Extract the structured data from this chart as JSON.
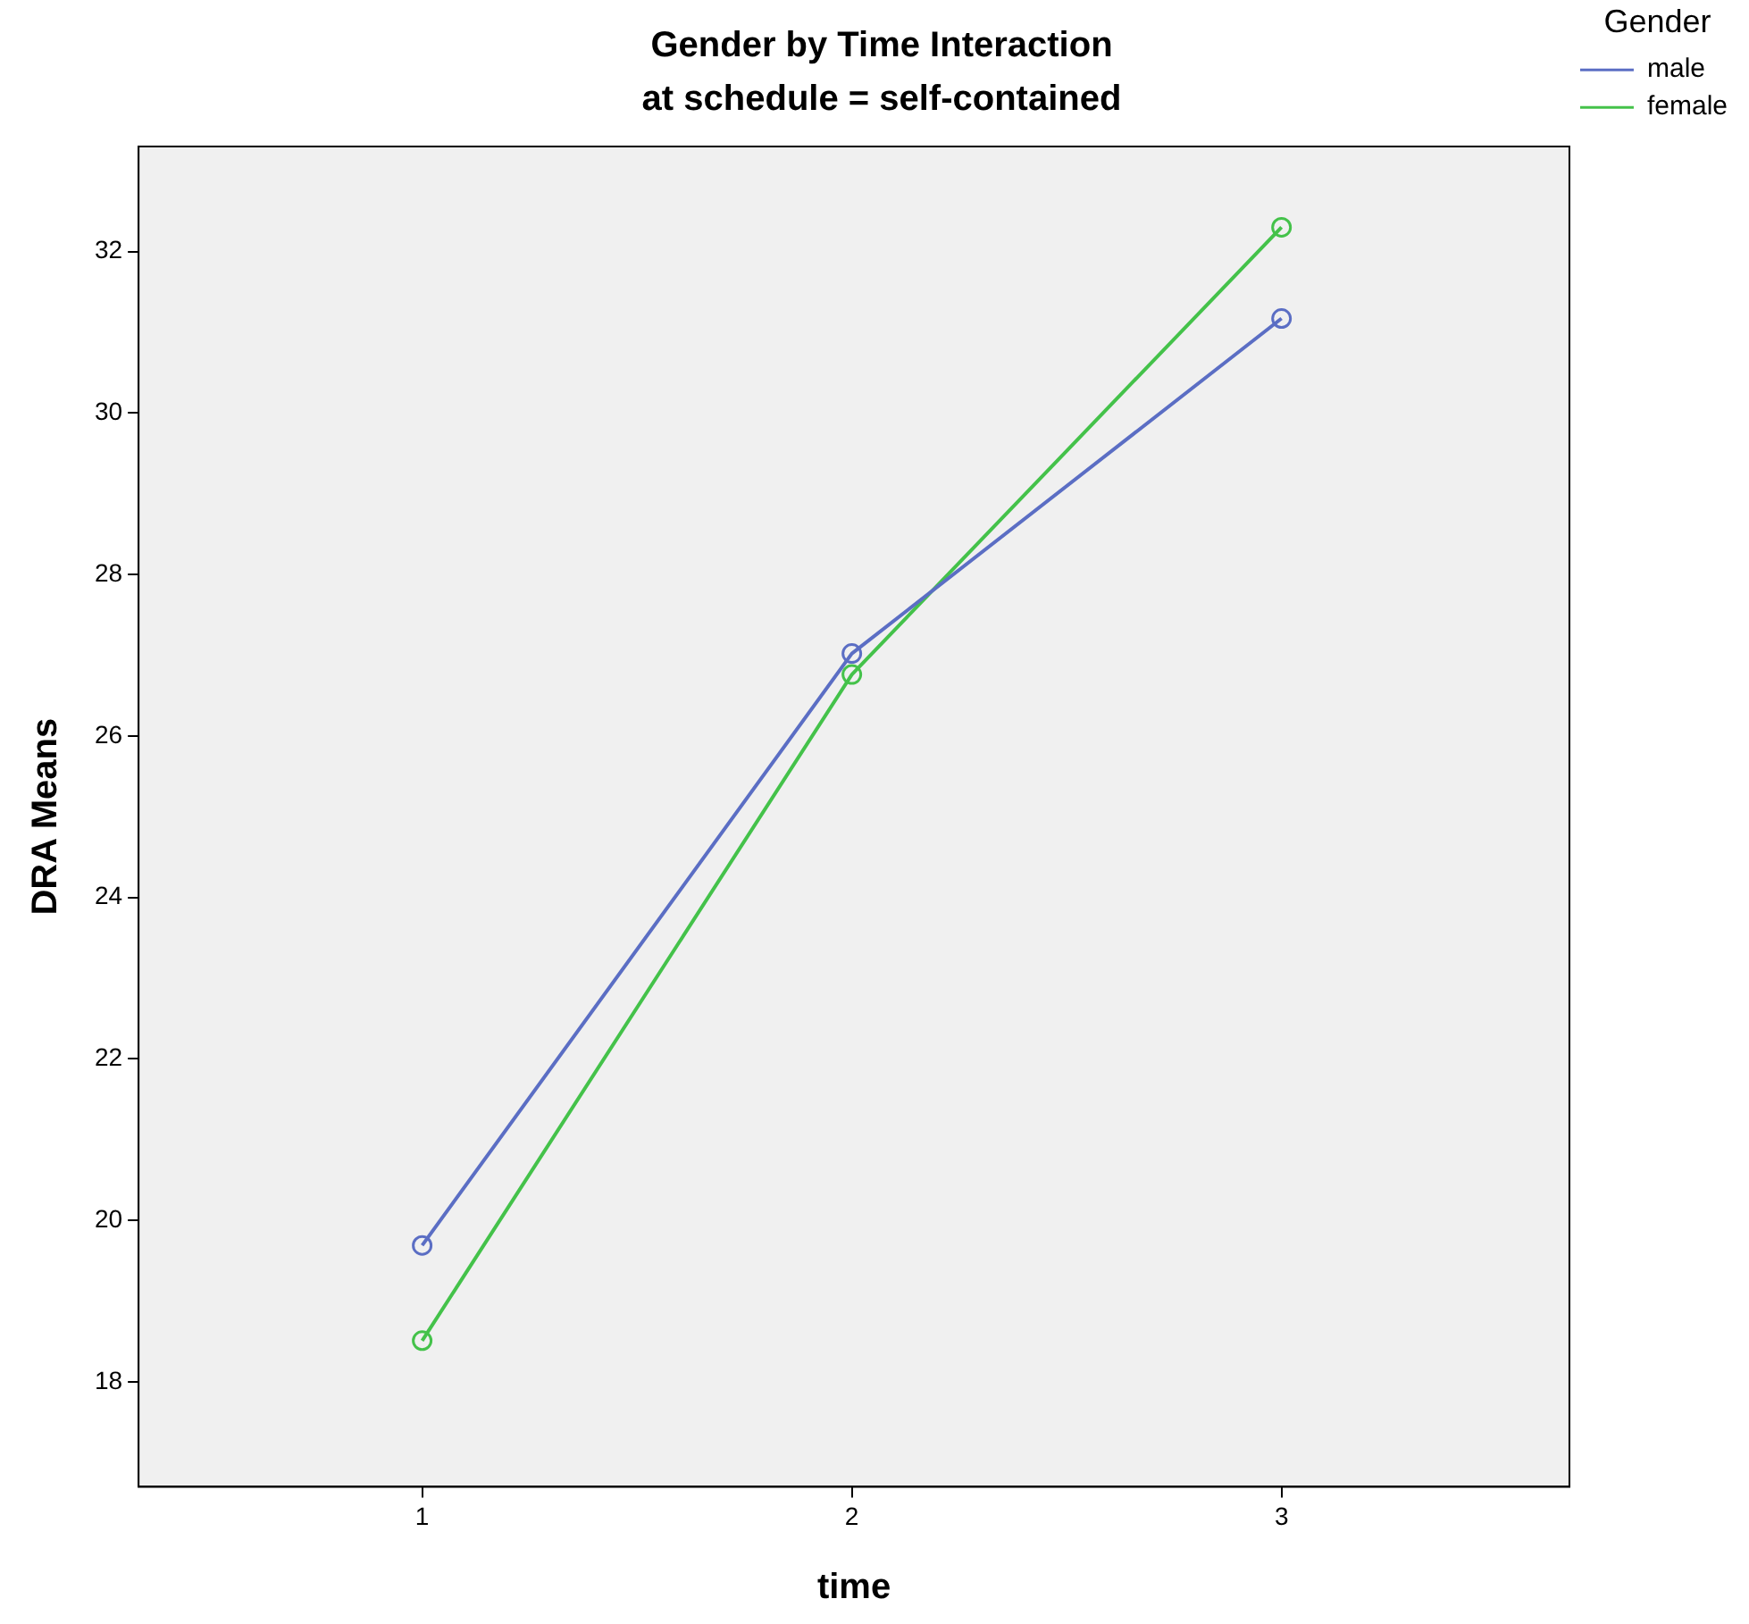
{
  "chart_data": {
    "type": "line",
    "title": "Gender by Time Interaction",
    "subtitle": "at schedule = self-contained",
    "xlabel": "time",
    "ylabel": "DRA Means",
    "legend_title": "Gender",
    "x": [
      1,
      2,
      3
    ],
    "xlim": [
      0.34,
      3.67
    ],
    "xticks": [
      1,
      2,
      3
    ],
    "ylim": [
      16.7,
      33.3
    ],
    "yticks": [
      18,
      20,
      22,
      24,
      26,
      28,
      30,
      32
    ],
    "series": [
      {
        "name": "male",
        "color": "#5b6ec4",
        "values": [
          19.69,
          27.02,
          31.17
        ]
      },
      {
        "name": "female",
        "color": "#44c24a",
        "values": [
          18.51,
          26.76,
          32.3
        ]
      }
    ],
    "grid": false,
    "legend": "top right",
    "marker": "circle",
    "line_style": "solid"
  }
}
